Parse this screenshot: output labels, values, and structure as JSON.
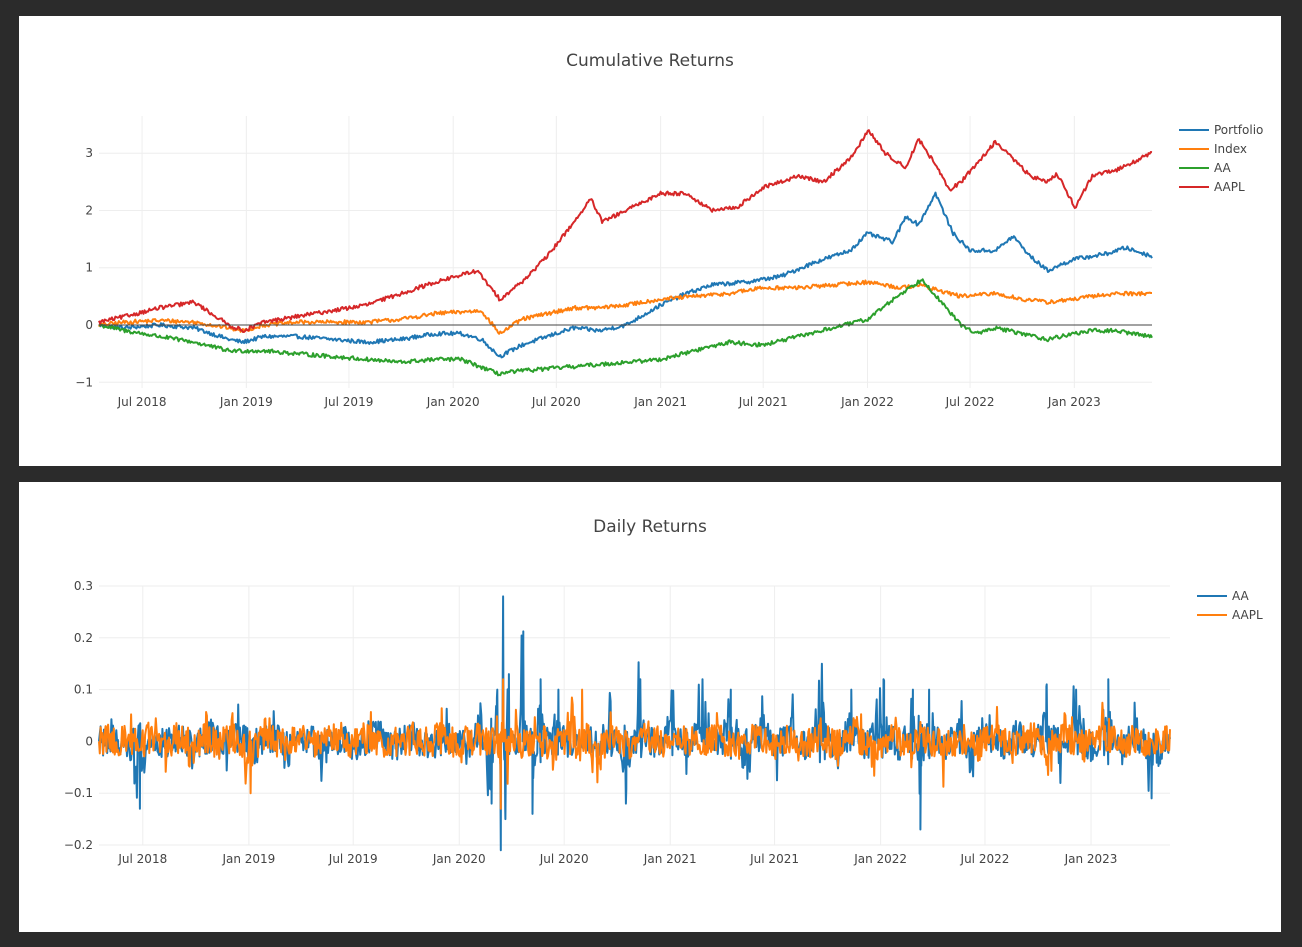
{
  "chart_data": [
    {
      "type": "line",
      "title": "Cumulative Returns",
      "xlabel": "",
      "ylabel": "",
      "xlim": [
        "2018-04-16",
        "2023-05-18"
      ],
      "ylim": [
        -1.1,
        3.65
      ],
      "x_ticks": [
        "Jul 2018",
        "Jan 2019",
        "Jul 2019",
        "Jan 2020",
        "Jul 2020",
        "Jan 2021",
        "Jul 2021",
        "Jan 2022",
        "Jul 2022",
        "Jan 2023"
      ],
      "y_ticks": [
        {
          "value": -1,
          "label": "−1"
        },
        {
          "value": 0,
          "label": "0"
        },
        {
          "value": 1,
          "label": "1"
        },
        {
          "value": 2,
          "label": "2"
        },
        {
          "value": 3,
          "label": "3"
        }
      ],
      "zero_line": true,
      "grid": true,
      "legend_position": "top-right",
      "series": [
        {
          "name": "Portfolio",
          "color": "#1f77b4",
          "x": [
            "2018-04-16",
            "2018-06-01",
            "2018-08-01",
            "2018-10-01",
            "2018-12-01",
            "2018-12-26",
            "2019-02-01",
            "2019-04-01",
            "2019-06-01",
            "2019-08-01",
            "2019-10-01",
            "2019-12-01",
            "2020-01-15",
            "2020-02-20",
            "2020-03-23",
            "2020-05-01",
            "2020-06-15",
            "2020-08-01",
            "2020-09-15",
            "2020-11-01",
            "2021-01-01",
            "2021-02-15",
            "2021-04-01",
            "2021-06-01",
            "2021-08-01",
            "2021-10-01",
            "2021-12-01",
            "2022-01-01",
            "2022-02-15",
            "2022-03-10",
            "2022-04-01",
            "2022-05-01",
            "2022-06-01",
            "2022-07-01",
            "2022-08-15",
            "2022-09-15",
            "2022-10-15",
            "2022-11-15",
            "2022-12-31",
            "2023-02-01",
            "2023-03-01",
            "2023-04-01",
            "2023-05-18"
          ],
          "values": [
            0.0,
            -0.05,
            0.0,
            -0.05,
            -0.25,
            -0.3,
            -0.2,
            -0.2,
            -0.25,
            -0.3,
            -0.25,
            -0.15,
            -0.15,
            -0.25,
            -0.55,
            -0.35,
            -0.2,
            -0.05,
            -0.1,
            0.0,
            0.35,
            0.55,
            0.7,
            0.75,
            0.85,
            1.1,
            1.3,
            1.6,
            1.45,
            1.9,
            1.75,
            2.3,
            1.6,
            1.3,
            1.3,
            1.55,
            1.2,
            0.95,
            1.15,
            1.2,
            1.25,
            1.35,
            1.2
          ]
        },
        {
          "name": "Index",
          "color": "#ff7f0e",
          "x": [
            "2018-04-16",
            "2018-06-01",
            "2018-08-01",
            "2018-10-01",
            "2018-12-01",
            "2018-12-26",
            "2019-02-01",
            "2019-04-01",
            "2019-06-01",
            "2019-08-01",
            "2019-10-01",
            "2019-12-01",
            "2020-02-20",
            "2020-03-23",
            "2020-05-01",
            "2020-06-15",
            "2020-08-01",
            "2020-09-15",
            "2020-11-01",
            "2021-01-01",
            "2021-03-01",
            "2021-05-01",
            "2021-07-01",
            "2021-09-01",
            "2021-11-01",
            "2022-01-03",
            "2022-03-01",
            "2022-04-01",
            "2022-06-15",
            "2022-08-15",
            "2022-10-01",
            "2022-11-15",
            "2022-12-31",
            "2023-02-01",
            "2023-03-15",
            "2023-05-18"
          ],
          "values": [
            0.0,
            0.05,
            0.08,
            0.05,
            -0.05,
            -0.1,
            0.0,
            0.05,
            0.05,
            0.05,
            0.1,
            0.2,
            0.25,
            -0.15,
            0.1,
            0.2,
            0.3,
            0.3,
            0.35,
            0.45,
            0.5,
            0.55,
            0.65,
            0.65,
            0.7,
            0.75,
            0.65,
            0.7,
            0.5,
            0.55,
            0.45,
            0.4,
            0.45,
            0.5,
            0.55,
            0.55
          ]
        },
        {
          "name": "AA",
          "color": "#2ca02c",
          "x": [
            "2018-04-16",
            "2018-06-01",
            "2018-08-01",
            "2018-10-01",
            "2018-12-01",
            "2019-02-01",
            "2019-04-01",
            "2019-06-01",
            "2019-08-01",
            "2019-10-01",
            "2019-12-01",
            "2020-01-15",
            "2020-03-20",
            "2020-05-01",
            "2020-07-01",
            "2020-09-01",
            "2020-11-01",
            "2021-01-01",
            "2021-03-01",
            "2021-05-01",
            "2021-07-01",
            "2021-09-01",
            "2021-11-01",
            "2022-01-01",
            "2022-03-01",
            "2022-04-08",
            "2022-05-15",
            "2022-06-15",
            "2022-07-15",
            "2022-08-15",
            "2022-10-01",
            "2022-11-15",
            "2022-12-31",
            "2023-02-01",
            "2023-03-15",
            "2023-05-18"
          ],
          "values": [
            0.0,
            -0.1,
            -0.2,
            -0.3,
            -0.45,
            -0.45,
            -0.5,
            -0.55,
            -0.6,
            -0.65,
            -0.6,
            -0.6,
            -0.85,
            -0.8,
            -0.75,
            -0.7,
            -0.65,
            -0.6,
            -0.45,
            -0.3,
            -0.35,
            -0.2,
            -0.05,
            0.1,
            0.55,
            0.8,
            0.35,
            0.0,
            -0.15,
            -0.05,
            -0.15,
            -0.25,
            -0.15,
            -0.1,
            -0.1,
            -0.2
          ]
        },
        {
          "name": "AAPL",
          "color": "#d62728",
          "x": [
            "2018-04-16",
            "2018-06-01",
            "2018-08-01",
            "2018-10-01",
            "2018-12-01",
            "2018-12-26",
            "2019-02-01",
            "2019-04-01",
            "2019-06-01",
            "2019-08-01",
            "2019-10-01",
            "2019-12-01",
            "2020-02-12",
            "2020-03-23",
            "2020-05-01",
            "2020-06-15",
            "2020-08-01",
            "2020-08-31",
            "2020-09-20",
            "2020-11-01",
            "2021-01-01",
            "2021-02-15",
            "2021-04-01",
            "2021-05-15",
            "2021-07-01",
            "2021-09-01",
            "2021-10-15",
            "2021-12-01",
            "2022-01-03",
            "2022-02-01",
            "2022-03-10",
            "2022-04-01",
            "2022-05-01",
            "2022-05-25",
            "2022-06-15",
            "2022-08-15",
            "2022-09-15",
            "2022-10-15",
            "2022-11-15",
            "2022-12-01",
            "2023-01-03",
            "2023-02-01",
            "2023-03-15",
            "2023-04-15",
            "2023-05-18"
          ],
          "values": [
            0.05,
            0.15,
            0.3,
            0.4,
            0.0,
            -0.1,
            0.05,
            0.15,
            0.25,
            0.35,
            0.55,
            0.75,
            0.95,
            0.45,
            0.75,
            1.2,
            1.8,
            2.2,
            1.8,
            2.0,
            2.3,
            2.3,
            2.0,
            2.05,
            2.4,
            2.6,
            2.5,
            2.9,
            3.4,
            3.0,
            2.75,
            3.25,
            2.8,
            2.35,
            2.5,
            3.2,
            2.9,
            2.6,
            2.5,
            2.65,
            2.05,
            2.6,
            2.7,
            2.85,
            3.0
          ]
        }
      ]
    },
    {
      "type": "line",
      "title": "Daily Returns",
      "xlabel": "",
      "ylabel": "",
      "xlim": [
        "2018-04-16",
        "2023-05-18"
      ],
      "ylim": [
        -0.2,
        0.3
      ],
      "x_ticks": [
        "Jul 2018",
        "Jan 2019",
        "Jul 2019",
        "Jan 2020",
        "Jul 2020",
        "Jan 2021",
        "Jul 2021",
        "Jan 2022",
        "Jul 2022",
        "Jan 2023"
      ],
      "y_ticks": [
        {
          "value": -0.2,
          "label": "−0.2"
        },
        {
          "value": -0.1,
          "label": "−0.1"
        },
        {
          "value": 0,
          "label": "0"
        },
        {
          "value": 0.1,
          "label": "0.1"
        },
        {
          "value": 0.2,
          "label": "0.2"
        },
        {
          "value": 0.3,
          "label": "0.3"
        }
      ],
      "grid": true,
      "legend_position": "top-right",
      "series": [
        {
          "name": "AA",
          "color": "#1f77b4",
          "x": [
            "2018-04-16",
            "2018-05-10",
            "2018-06-05",
            "2018-06-25",
            "2018-07-10",
            "2018-08-05",
            "2018-09-01",
            "2018-10-01",
            "2018-10-25",
            "2018-11-20",
            "2018-12-15",
            "2019-01-15",
            "2019-02-10",
            "2019-03-10",
            "2019-04-10",
            "2019-05-10",
            "2019-06-10",
            "2019-07-10",
            "2019-08-10",
            "2019-09-10",
            "2019-10-10",
            "2019-11-10",
            "2019-12-10",
            "2020-01-10",
            "2020-02-05",
            "2020-02-25",
            "2020-03-06",
            "2020-03-12",
            "2020-03-16",
            "2020-03-20",
            "2020-03-26",
            "2020-04-06",
            "2020-04-20",
            "2020-05-06",
            "2020-05-20",
            "2020-06-05",
            "2020-06-20",
            "2020-07-10",
            "2020-08-01",
            "2020-08-25",
            "2020-09-20",
            "2020-10-15",
            "2020-11-09",
            "2020-12-05",
            "2021-01-05",
            "2021-01-28",
            "2021-02-25",
            "2021-03-20",
            "2021-04-15",
            "2021-05-12",
            "2021-06-10",
            "2021-07-05",
            "2021-08-01",
            "2021-08-25",
            "2021-09-20",
            "2021-10-15",
            "2021-11-10",
            "2021-12-05",
            "2022-01-05",
            "2022-02-01",
            "2022-02-25",
            "2022-03-10",
            "2022-03-25",
            "2022-04-20",
            "2022-05-15",
            "2022-06-10",
            "2022-07-05",
            "2022-08-01",
            "2022-08-25",
            "2022-09-20",
            "2022-10-15",
            "2022-11-10",
            "2022-12-05",
            "2023-01-05",
            "2023-01-30",
            "2023-02-25",
            "2023-03-20",
            "2023-04-15",
            "2023-05-18"
          ],
          "values": [
            0.0,
            0.02,
            -0.03,
            -0.13,
            0.02,
            -0.04,
            0.04,
            -0.05,
            0.06,
            -0.06,
            0.05,
            -0.07,
            0.04,
            -0.05,
            0.03,
            -0.06,
            0.05,
            -0.04,
            0.07,
            -0.05,
            0.04,
            -0.06,
            0.05,
            -0.04,
            0.06,
            -0.12,
            0.1,
            -0.21,
            0.28,
            -0.15,
            0.13,
            -0.06,
            0.17,
            -0.14,
            0.12,
            -0.05,
            0.1,
            -0.06,
            0.09,
            -0.05,
            0.08,
            -0.12,
            0.12,
            -0.06,
            0.09,
            -0.07,
            0.12,
            -0.05,
            0.1,
            -0.08,
            0.09,
            -0.06,
            0.08,
            -0.07,
            0.15,
            -0.08,
            0.1,
            -0.06,
            0.12,
            -0.07,
            0.1,
            -0.17,
            0.1,
            -0.06,
            0.09,
            -0.08,
            0.07,
            -0.06,
            0.09,
            -0.05,
            0.11,
            -0.06,
            0.1,
            -0.07,
            0.12,
            -0.05,
            0.08,
            -0.11,
            0.03
          ]
        },
        {
          "name": "AAPL",
          "color": "#ff7f0e",
          "x": [
            "2018-04-16",
            "2018-05-01",
            "2018-05-20",
            "2018-06-10",
            "2018-07-01",
            "2018-07-20",
            "2018-08-10",
            "2018-09-01",
            "2018-09-25",
            "2018-10-20",
            "2018-11-10",
            "2018-11-30",
            "2018-12-20",
            "2019-01-03",
            "2019-01-30",
            "2019-03-01",
            "2019-04-01",
            "2019-05-01",
            "2019-06-01",
            "2019-07-01",
            "2019-08-01",
            "2019-09-01",
            "2019-10-01",
            "2019-11-01",
            "2019-12-01",
            "2020-01-02",
            "2020-02-01",
            "2020-02-24",
            "2020-03-05",
            "2020-03-12",
            "2020-03-16",
            "2020-03-24",
            "2020-04-06",
            "2020-04-20",
            "2020-05-10",
            "2020-06-10",
            "2020-07-10",
            "2020-07-31",
            "2020-08-20",
            "2020-09-03",
            "2020-09-20",
            "2020-10-20",
            "2020-11-20",
            "2020-12-20",
            "2021-01-20",
            "2021-02-20",
            "2021-03-20",
            "2021-04-20",
            "2021-05-20",
            "2021-06-20",
            "2021-07-20",
            "2021-08-20",
            "2021-09-20",
            "2021-10-20",
            "2021-11-20",
            "2021-12-20",
            "2022-01-20",
            "2022-02-20",
            "2022-03-20",
            "2022-04-20",
            "2022-05-20",
            "2022-06-20",
            "2022-07-20",
            "2022-08-20",
            "2022-09-20",
            "2022-10-20",
            "2022-11-20",
            "2022-12-20",
            "2023-01-20",
            "2023-02-20",
            "2023-03-20",
            "2023-04-20",
            "2023-05-18"
          ],
          "values": [
            0.0,
            0.04,
            -0.02,
            0.03,
            -0.02,
            0.06,
            -0.03,
            0.04,
            -0.05,
            0.04,
            -0.06,
            0.05,
            -0.04,
            -0.1,
            0.07,
            -0.04,
            0.03,
            -0.05,
            0.04,
            -0.03,
            0.05,
            -0.04,
            0.03,
            -0.02,
            0.04,
            -0.03,
            0.04,
            -0.05,
            0.09,
            -0.13,
            0.12,
            -0.07,
            0.08,
            -0.04,
            0.05,
            -0.04,
            0.06,
            0.1,
            -0.05,
            -0.08,
            0.06,
            -0.04,
            0.05,
            -0.03,
            0.05,
            -0.04,
            0.04,
            -0.03,
            0.03,
            -0.04,
            0.04,
            -0.03,
            0.04,
            -0.05,
            0.05,
            -0.04,
            0.04,
            -0.05,
            0.05,
            -0.06,
            0.05,
            -0.06,
            0.05,
            -0.04,
            0.04,
            -0.06,
            0.06,
            -0.04,
            0.05,
            -0.03,
            0.04,
            -0.03,
            0.03
          ]
        }
      ]
    }
  ]
}
